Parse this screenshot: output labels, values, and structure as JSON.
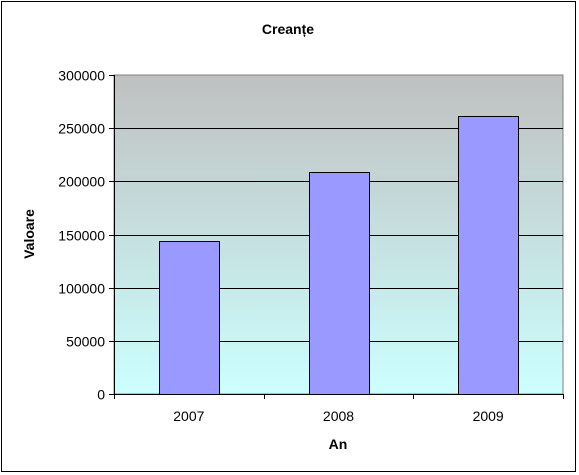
{
  "chart_data": {
    "type": "bar",
    "title": "Creanțe",
    "xlabel": "An",
    "ylabel": "Valoare",
    "categories": [
      "2007",
      "2008",
      "2009"
    ],
    "values": [
      144000,
      209000,
      261000
    ],
    "ylim": [
      0,
      300000
    ],
    "yticks": [
      "0",
      "50000",
      "100000",
      "150000",
      "200000",
      "250000",
      "300000"
    ],
    "grid": true,
    "legend": "none",
    "colors": {
      "bar_fill": "#9999FF",
      "bar_stroke": "#000000",
      "plot_bg_top": "#C0C0C0",
      "plot_bg_bottom": "#CCFFFF"
    }
  }
}
